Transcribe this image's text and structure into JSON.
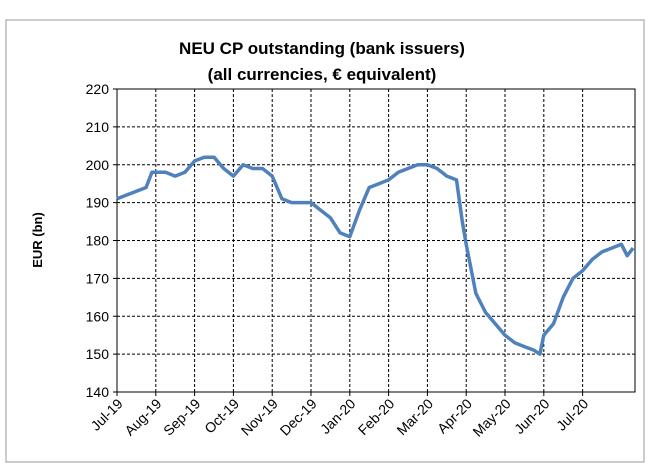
{
  "chart_data": {
    "type": "line",
    "title": "NEU CP outstanding (bank issuers)",
    "subtitle": "(all currencies, € equivalent)",
    "y_label": "EUR (bn)",
    "color": "#4f81bd",
    "grid": true,
    "x": [
      0,
      0.25,
      0.5,
      0.75,
      0.9,
      1.25,
      1.5,
      1.75,
      2.0,
      2.25,
      2.5,
      2.75,
      3.0,
      3.25,
      3.5,
      3.75,
      4.0,
      4.25,
      4.5,
      4.75,
      5.0,
      5.25,
      5.5,
      5.75,
      6.0,
      6.25,
      6.5,
      6.75,
      7.0,
      7.25,
      7.5,
      7.75,
      8.0,
      8.25,
      8.5,
      8.75,
      8.9,
      9.0,
      9.25,
      9.5,
      9.75,
      10.0,
      10.25,
      10.5,
      10.75,
      10.9,
      11.0,
      11.25,
      11.5,
      11.75,
      12.0,
      12.25,
      12.5,
      12.75,
      13.0,
      13.15,
      13.3
    ],
    "values": [
      191,
      192,
      193,
      194,
      198,
      198,
      197,
      198,
      201,
      202,
      202,
      199,
      197,
      200,
      199,
      199,
      197,
      191,
      190,
      190,
      190,
      188,
      186,
      182,
      181,
      188,
      194,
      195,
      196,
      198,
      199,
      200,
      200,
      199,
      197,
      196,
      185,
      179,
      166,
      161,
      158,
      155,
      153,
      152,
      151,
      150,
      155,
      158,
      165,
      170,
      172,
      175,
      177,
      178,
      179,
      176,
      178
    ],
    "xlim": [
      0,
      13.35
    ],
    "xticks": [
      {
        "value": 0,
        "label": "Jul-19"
      },
      {
        "value": 1,
        "label": "Aug-19"
      },
      {
        "value": 2,
        "label": "Sep-19"
      },
      {
        "value": 3,
        "label": "Oct-19"
      },
      {
        "value": 4,
        "label": "Nov-19"
      },
      {
        "value": 5,
        "label": "Dec-19"
      },
      {
        "value": 6,
        "label": "Jan-20"
      },
      {
        "value": 7,
        "label": "Feb-20"
      },
      {
        "value": 8,
        "label": "Mar-20"
      },
      {
        "value": 9,
        "label": "Apr-20"
      },
      {
        "value": 10,
        "label": "May-20"
      },
      {
        "value": 11,
        "label": "Jun-20"
      },
      {
        "value": 12,
        "label": "Jul-20"
      }
    ],
    "ylim": [
      140,
      220
    ],
    "yticks": [
      140,
      150,
      160,
      170,
      180,
      190,
      200,
      210,
      220
    ]
  }
}
